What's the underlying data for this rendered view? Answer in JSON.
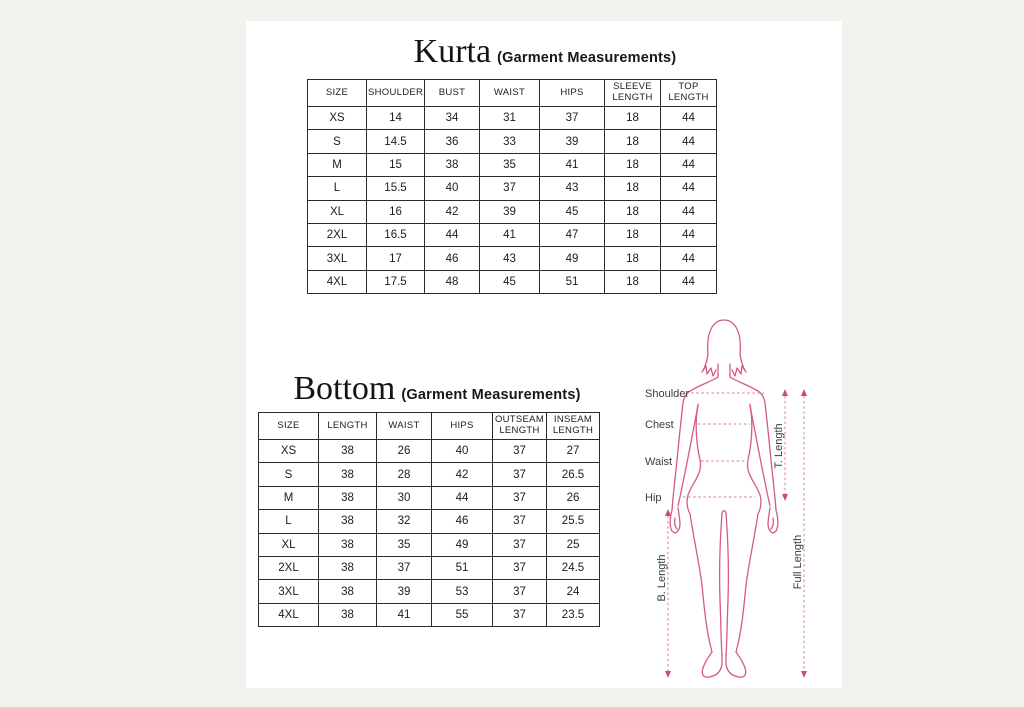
{
  "colors": {
    "page_bg": "#f4f2ed",
    "sheet_bg": "#ffffff",
    "table_border": "#2a2a2a",
    "text": "#1c1c1c",
    "fig_outline": "#d65a82",
    "fig_dash": "#dc94a9",
    "fig_arrow": "#c84c72",
    "fig_label": "#3b3b3b"
  },
  "kurta": {
    "title": "Kurta",
    "subtitle": "(Garment Measurements)",
    "columns": [
      "SIZE",
      "SHOULDER",
      "BUST",
      "WAIST",
      "HIPS",
      "SLEEVE LENGTH",
      "TOP LENGTH"
    ],
    "rows": [
      [
        "XS",
        "14",
        "34",
        "31",
        "37",
        "18",
        "44"
      ],
      [
        "S",
        "14.5",
        "36",
        "33",
        "39",
        "18",
        "44"
      ],
      [
        "M",
        "15",
        "38",
        "35",
        "41",
        "18",
        "44"
      ],
      [
        "L",
        "15.5",
        "40",
        "37",
        "43",
        "18",
        "44"
      ],
      [
        "XL",
        "16",
        "42",
        "39",
        "45",
        "18",
        "44"
      ],
      [
        "2XL",
        "16.5",
        "44",
        "41",
        "47",
        "18",
        "44"
      ],
      [
        "3XL",
        "17",
        "46",
        "43",
        "49",
        "18",
        "44"
      ],
      [
        "4XL",
        "17.5",
        "48",
        "45",
        "51",
        "18",
        "44"
      ]
    ]
  },
  "bottom": {
    "title": "Bottom",
    "subtitle": "(Garment Measurements)",
    "columns": [
      "SIZE",
      "LENGTH",
      "WAIST",
      "HIPS",
      "OUTSEAM LENGTH",
      "INSEAM LENGTH"
    ],
    "rows": [
      [
        "XS",
        "38",
        "26",
        "40",
        "37",
        "27"
      ],
      [
        "S",
        "38",
        "28",
        "42",
        "37",
        "26.5"
      ],
      [
        "M",
        "38",
        "30",
        "44",
        "37",
        "26"
      ],
      [
        "L",
        "38",
        "32",
        "46",
        "37",
        "25.5"
      ],
      [
        "XL",
        "38",
        "35",
        "49",
        "37",
        "25"
      ],
      [
        "2XL",
        "38",
        "37",
        "51",
        "37",
        "24.5"
      ],
      [
        "3XL",
        "38",
        "39",
        "53",
        "37",
        "24"
      ],
      [
        "4XL",
        "38",
        "41",
        "55",
        "37",
        "23.5"
      ]
    ]
  },
  "figure": {
    "labels": {
      "shoulder": "Shoulder",
      "chest": "Chest",
      "waist": "Waist",
      "hip": "Hip",
      "t_length": "T. Length",
      "full_length": "Full Length",
      "b_length": "B. Length"
    }
  }
}
